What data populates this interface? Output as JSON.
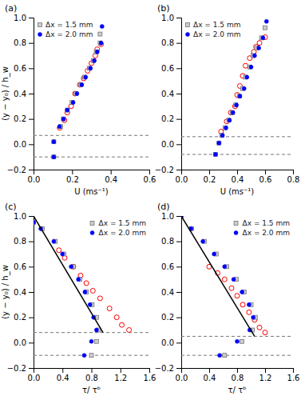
{
  "chart_data": [
    {
      "type": "scatter",
      "title": "(a)",
      "x_label": "U (ms⁻¹)",
      "y_label": "(y − y₀) / h_w",
      "xlim": [
        0,
        0.6
      ],
      "ylim": [
        -0.2,
        1.0
      ],
      "xticks": [
        {
          "value": 0,
          "label": "0.0"
        },
        0.2,
        0.4,
        0.6
      ],
      "yticks": [
        {
          "value": -0.2,
          "label": "−0.2"
        },
        {
          "value": 0.0,
          "label": "0.0"
        },
        0.2,
        0.4,
        0.6,
        0.8,
        {
          "value": 1.0,
          "label": "1.0"
        }
      ],
      "grid": false,
      "legend": "upper left",
      "series": [
        {
          "type": "hline",
          "color": "#777777",
          "line_style": "dashed",
          "values": [
            0.07,
            -0.1
          ]
        },
        {
          "type": "scatter",
          "marker": "open_circle",
          "color": "red",
          "x": [
            0.135,
            0.16,
            0.175,
            0.195,
            0.215,
            0.24,
            0.26,
            0.28,
            0.3,
            0.32,
            0.33,
            0.35
          ],
          "values": [
            0.13,
            0.19,
            0.25,
            0.3,
            0.4,
            0.47,
            0.52,
            0.58,
            0.64,
            0.7,
            0.75,
            0.79
          ]
        },
        {
          "type": "scatter",
          "name": "Δx = 1.5 mm",
          "marker": "square",
          "color": "#cccccc",
          "x": [
            0.105,
            0.105,
            0.14,
            0.155,
            0.175,
            0.2,
            0.22,
            0.245,
            0.265,
            0.29,
            0.31,
            0.325,
            0.345,
            0.345
          ],
          "values": [
            -0.1,
            0.02,
            0.14,
            0.2,
            0.27,
            0.33,
            0.4,
            0.47,
            0.53,
            0.6,
            0.66,
            0.73,
            0.8,
            0.87
          ]
        },
        {
          "type": "scatter",
          "name": "Δx = 2.0 mm",
          "marker": "circle",
          "color": "blue",
          "x": [
            0.105,
            0.105,
            0.135,
            0.155,
            0.175,
            0.205,
            0.225,
            0.25,
            0.27,
            0.295,
            0.315,
            0.33,
            0.35,
            0.355
          ],
          "values": [
            -0.1,
            0.02,
            0.14,
            0.2,
            0.27,
            0.33,
            0.4,
            0.47,
            0.53,
            0.6,
            0.66,
            0.73,
            0.8,
            0.93
          ]
        }
      ]
    },
    {
      "type": "scatter",
      "title": "(b)",
      "x_label": "U (ms⁻¹)",
      "xlim": [
        0,
        0.8
      ],
      "ylim": [
        -0.2,
        1.0
      ],
      "xticks": [
        {
          "value": 0,
          "label": "0.0"
        },
        0.2,
        0.4,
        0.6,
        0.8
      ],
      "yticks": [
        {
          "value": -0.2,
          "label": "−0.2"
        },
        {
          "value": 0.0,
          "label": "0.0"
        },
        0.2,
        0.4,
        0.6,
        0.8,
        {
          "value": 1.0,
          "label": "1.0"
        }
      ],
      "grid": false,
      "legend": "upper left",
      "series": [
        {
          "type": "hline",
          "color": "#777777",
          "line_style": "dashed",
          "values": [
            0.06,
            -0.08
          ]
        },
        {
          "type": "scatter",
          "marker": "open_circle",
          "color": "red",
          "x": [
            0.285,
            0.325,
            0.355,
            0.385,
            0.4,
            0.42,
            0.44,
            0.46,
            0.49,
            0.52,
            0.535,
            0.56,
            0.6
          ],
          "values": [
            0.1,
            0.18,
            0.25,
            0.3,
            0.39,
            0.46,
            0.54,
            0.62,
            0.68,
            0.73,
            0.77,
            0.8,
            0.845
          ]
        },
        {
          "type": "scatter",
          "name": "Δx = 1.5 mm",
          "marker": "square",
          "color": "#cccccc",
          "x": [
            0.245,
            0.27,
            0.29,
            0.315,
            0.34,
            0.365,
            0.39,
            0.415,
            0.44,
            0.46,
            0.49,
            0.515,
            0.54,
            0.575,
            0.6
          ],
          "values": [
            -0.08,
            0.01,
            0.07,
            0.13,
            0.19,
            0.25,
            0.31,
            0.38,
            0.44,
            0.53,
            0.61,
            0.7,
            0.76,
            0.84,
            0.92
          ]
        },
        {
          "type": "scatter",
          "name": "Δx = 2.0 mm",
          "marker": "circle",
          "color": "blue",
          "x": [
            0.245,
            0.27,
            0.295,
            0.32,
            0.345,
            0.37,
            0.395,
            0.42,
            0.45,
            0.47,
            0.5,
            0.525,
            0.555,
            0.585,
            0.61
          ],
          "values": [
            -0.08,
            0.01,
            0.07,
            0.13,
            0.19,
            0.25,
            0.31,
            0.38,
            0.44,
            0.53,
            0.61,
            0.7,
            0.76,
            0.84,
            0.97
          ]
        }
      ]
    },
    {
      "type": "scatter",
      "title": "(c)",
      "x_label": "τ/ τᵇ",
      "y_label": "(y − y₀) / h_w",
      "xlim": [
        0,
        1.6
      ],
      "ylim": [
        -0.2,
        1.0
      ],
      "xticks": [
        {
          "value": 0,
          "label": "0.0"
        },
        0.4,
        0.8,
        1.2,
        1.6
      ],
      "yticks": [
        {
          "value": -0.2,
          "label": "−0.2"
        },
        {
          "value": 0.0,
          "label": "0.0"
        },
        0.2,
        0.4,
        0.6,
        0.8,
        {
          "value": 1.0,
          "label": "1.0"
        }
      ],
      "grid": false,
      "legend": "upper right",
      "series": [
        {
          "type": "hline",
          "color": "#777777",
          "line_style": "dashed",
          "values": [
            0.08,
            -0.1
          ]
        },
        {
          "type": "scatter",
          "marker": "open_circle",
          "color": "red",
          "x": [
            0.35,
            0.43,
            0.55,
            0.65,
            0.73,
            0.82,
            0.92,
            1.05,
            1.15,
            1.22,
            1.32
          ],
          "values": [
            0.73,
            0.67,
            0.6,
            0.53,
            0.47,
            0.41,
            0.35,
            0.27,
            0.2,
            0.14,
            0.1
          ]
        },
        {
          "type": "scatter",
          "name": "Δx = 1.5 mm",
          "marker": "square",
          "color": "#cccccc",
          "x": [
            0.0,
            0.12,
            0.3,
            0.42,
            0.55,
            0.64,
            0.73,
            0.81,
            0.87,
            0.9,
            0.87,
            0.8
          ],
          "values": [
            0.95,
            0.9,
            0.8,
            0.7,
            0.6,
            0.5,
            0.4,
            0.3,
            0.2,
            0.1,
            0.01,
            -0.1
          ]
        },
        {
          "type": "scatter",
          "name": "Δx = 2.0 mm",
          "marker": "circle",
          "color": "blue",
          "x": [
            0.0,
            0.1,
            0.28,
            0.4,
            0.52,
            0.62,
            0.71,
            0.78,
            0.83,
            0.87,
            0.8,
            0.7
          ],
          "values": [
            0.95,
            0.9,
            0.8,
            0.7,
            0.6,
            0.5,
            0.4,
            0.3,
            0.2,
            0.1,
            0.01,
            -0.1
          ]
        },
        {
          "type": "line",
          "color": "black",
          "line_style": "solid",
          "x": [
            0.0,
            0.96
          ],
          "values": [
            1.0,
            0.08
          ]
        }
      ]
    },
    {
      "type": "scatter",
      "title": "(d)",
      "x_label": "τ/ τᵇ",
      "xlim": [
        0,
        1.6
      ],
      "ylim": [
        -0.2,
        1.0
      ],
      "xticks": [
        {
          "value": 0,
          "label": "0.0"
        },
        0.4,
        0.8,
        1.2,
        1.6
      ],
      "yticks": [
        {
          "value": -0.2,
          "label": "−0.2"
        },
        {
          "value": 0.0,
          "label": "0.0"
        },
        0.2,
        0.4,
        0.6,
        0.8,
        {
          "value": 1.0,
          "label": "1.0"
        }
      ],
      "grid": false,
      "legend": "upper right",
      "series": [
        {
          "type": "hline",
          "color": "#777777",
          "line_style": "dashed",
          "values": [
            0.05,
            -0.1
          ]
        },
        {
          "type": "scatter",
          "marker": "open_circle",
          "color": "red",
          "x": [
            0.4,
            0.52,
            0.62,
            0.72,
            0.8,
            0.88,
            0.97,
            1.05,
            1.12,
            1.2
          ],
          "values": [
            0.6,
            0.55,
            0.5,
            0.43,
            0.37,
            0.3,
            0.24,
            0.18,
            0.12,
            0.08
          ]
        },
        {
          "type": "scatter",
          "name": "Δx = 1.5 mm",
          "marker": "square",
          "color": "#cccccc",
          "x": [
            0.0,
            0.15,
            0.33,
            0.5,
            0.65,
            0.79,
            0.9,
            1.0,
            1.06,
            1.02,
            0.87,
            0.62
          ],
          "values": [
            1.0,
            0.9,
            0.8,
            0.7,
            0.6,
            0.5,
            0.4,
            0.3,
            0.2,
            0.1,
            0.01,
            -0.1
          ]
        },
        {
          "type": "scatter",
          "name": "Δx = 2.0 mm",
          "marker": "circle",
          "color": "blue",
          "x": [
            0.0,
            0.14,
            0.31,
            0.47,
            0.62,
            0.75,
            0.87,
            0.97,
            1.03,
            0.98,
            0.8,
            0.55
          ],
          "values": [
            1.0,
            0.9,
            0.8,
            0.7,
            0.6,
            0.5,
            0.4,
            0.3,
            0.2,
            0.1,
            0.01,
            -0.1
          ]
        },
        {
          "type": "line",
          "color": "black",
          "line_style": "solid",
          "x": [
            0.0,
            1.05
          ],
          "values": [
            1.0,
            0.05
          ]
        }
      ]
    }
  ]
}
